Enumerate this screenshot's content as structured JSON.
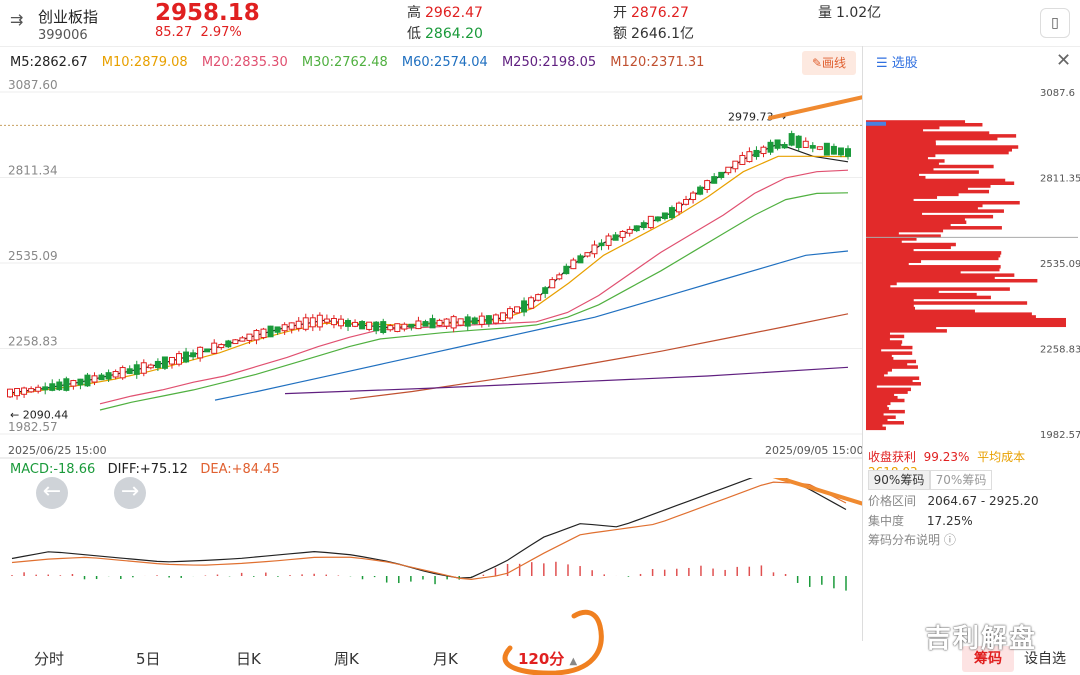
{
  "header": {
    "menu_icon": "list-toggle-icon",
    "name": "创业板指",
    "code": "399006",
    "price": "2958.18",
    "change": "85.27",
    "change_pct": "2.97%",
    "high_label": "高",
    "high": "2962.47",
    "low_label": "低",
    "low": "2864.20",
    "open_label": "开",
    "open": "2876.27",
    "amount_label": "额",
    "amount": "2646.1亿",
    "volume_label": "量",
    "volume": "1.02亿",
    "phone_icon": "phone-icon"
  },
  "ma": {
    "m5": "M5:2862.67",
    "m10": "M10:2879.08",
    "m20": "M20:2835.30",
    "m30": "M30:2762.48",
    "m60": "M60:2574.04",
    "m250": "M250:2198.05",
    "m120": "M120:2371.31",
    "colors": {
      "m5": "#222222",
      "m10": "#e8a000",
      "m20": "#e05070",
      "m30": "#50b040",
      "m60": "#2070c0",
      "m250": "#602080",
      "m120": "#c05030"
    }
  },
  "draw_button": "✎画线",
  "main_chart": {
    "y_labels": [
      "3087.60",
      "2811.34",
      "2535.09",
      "2258.83",
      "1982.57"
    ],
    "start_date": "2025/06/25 15:00",
    "end_date": "2025/09/05 15:00",
    "low_annotation": "2090.44",
    "high_annotation": "2979.73"
  },
  "right_panel": {
    "select_label": "选股",
    "y_labels": [
      "3087.6",
      "2811.35",
      "2535.09",
      "2258.83",
      "1982.57"
    ],
    "profit_label": "收盘获利",
    "profit_value": "99.23%",
    "avg_cost_label": "平均成本",
    "avg_cost_value": "2618.03",
    "tab90": "90%筹码",
    "tab70": "70%筹码",
    "range_label": "价格区间",
    "range_value": "2064.67 - 2925.20",
    "conc_label": "集中度",
    "conc_value": "17.25%",
    "explain": "筹码分布说明 ⓘ"
  },
  "macd": {
    "macd": "MACD:-18.66",
    "diff": "DIFF:+75.12",
    "dea": "DEA:+84.45"
  },
  "nav": {
    "fenshi": "分时",
    "five_day": "5日",
    "day_k": "日K",
    "week_k": "周K",
    "month_k": "月K",
    "min120": "120分",
    "chip": "筹码",
    "custom": "设自选"
  },
  "watermark": "吉利解盘",
  "chart_data": {
    "type": "candlestick",
    "x_range": [
      "2025/06/25 15:00",
      "2025/09/05 15:00"
    ],
    "ylim": [
      1982.57,
      3087.6
    ],
    "ma_lines": {
      "M5": [
        2115,
        2130,
        2150,
        2175,
        2200,
        2230,
        2265,
        2300,
        2330,
        2350,
        2335,
        2325,
        2340,
        2345,
        2355,
        2410,
        2520,
        2600,
        2650,
        2700,
        2790,
        2870,
        2920,
        2880,
        2862
      ],
      "M10": [
        2110,
        2125,
        2140,
        2160,
        2185,
        2215,
        2245,
        2285,
        2315,
        2340,
        2340,
        2335,
        2338,
        2342,
        2350,
        2390,
        2470,
        2560,
        2620,
        2680,
        2750,
        2830,
        2880,
        2880,
        2879
      ],
      "M20": [
        2080,
        2105,
        2125,
        2150,
        2170,
        2200,
        2230,
        2265,
        2295,
        2320,
        2325,
        2330,
        2335,
        2340,
        2345,
        2375,
        2430,
        2500,
        2570,
        2630,
        2690,
        2760,
        2810,
        2830,
        2835
      ],
      "M30": [
        2060,
        2085,
        2105,
        2125,
        2150,
        2175,
        2205,
        2235,
        2265,
        2290,
        2300,
        2310,
        2318,
        2325,
        2335,
        2360,
        2400,
        2455,
        2510,
        2570,
        2630,
        2690,
        2740,
        2760,
        2762
      ],
      "M60": [
        2092,
        2120,
        2150,
        2180,
        2210,
        2240,
        2270,
        2300,
        2330,
        2360,
        2400,
        2440,
        2480,
        2520,
        2560,
        2574
      ],
      "M120": [
        2095,
        2120,
        2150,
        2180,
        2215,
        2250,
        2290,
        2330,
        2371
      ],
      "M250": [
        2113,
        2130,
        2150,
        2170,
        2198
      ]
    }
  }
}
